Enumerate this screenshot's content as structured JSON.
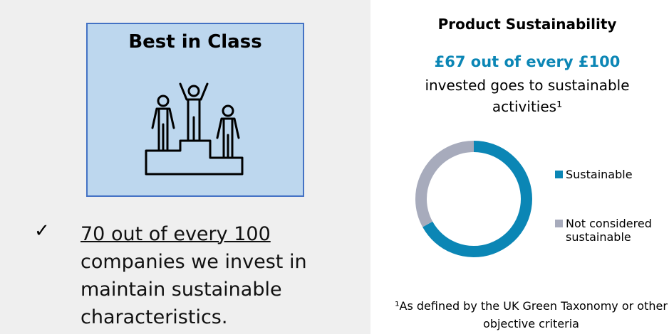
{
  "left_panel": {
    "box_title": "Best in Class",
    "check": "✓",
    "highlight": "70 out of every 100",
    "text": "companies we invest in maintain sustainable characteristics."
  },
  "chart_data": {
    "type": "donut",
    "title": "Product Sustainability",
    "headline": "£67 out of every £100",
    "subtitle": "invested goes to sustainable activities¹",
    "categories": [
      "Sustainable",
      "Not considered sustainable"
    ],
    "values": [
      67,
      33
    ],
    "colors": [
      "#0b86b5",
      "#a7abbc"
    ],
    "footnote": "¹As defined by the UK Green Taxonomy or other objective criteria"
  }
}
